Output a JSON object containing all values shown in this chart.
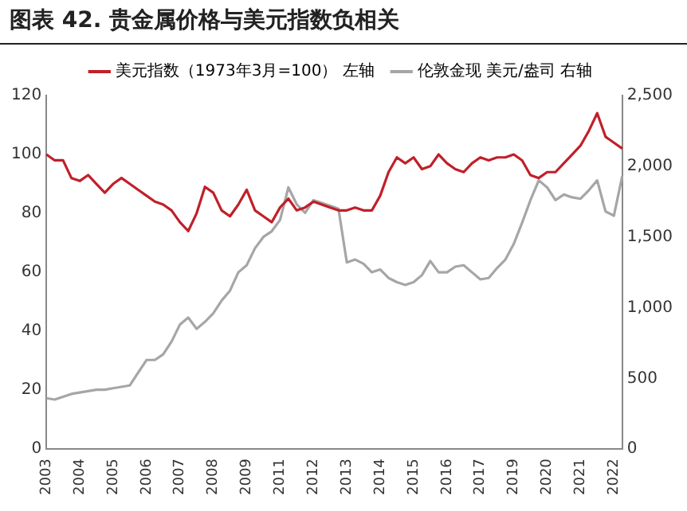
{
  "chart_data": {
    "type": "line",
    "title": "图表 42. 贵金属价格与美元指数负相关",
    "categories": [
      "2003",
      null,
      null,
      null,
      "2004",
      null,
      null,
      null,
      "2005",
      null,
      null,
      null,
      "2006",
      null,
      null,
      null,
      "2007",
      null,
      null,
      null,
      "2008",
      null,
      null,
      null,
      "2009",
      null,
      null,
      null,
      "2011",
      null,
      null,
      null,
      "2012",
      null,
      null,
      null,
      "2013",
      null,
      null,
      null,
      "2014",
      null,
      null,
      null,
      "2015",
      null,
      null,
      null,
      "2016",
      null,
      null,
      null,
      "2017",
      null,
      null,
      null,
      "2019",
      null,
      null,
      null,
      "2020",
      null,
      null,
      null,
      "2021",
      null,
      null,
      null,
      "2022",
      null
    ],
    "series": [
      {
        "name": "美元指数（1973年3月=100） 左轴",
        "color": "#c0202a",
        "values": [
          100,
          98,
          98,
          92,
          91,
          93,
          90,
          87,
          90,
          92,
          90,
          88,
          86,
          84,
          83,
          81,
          77,
          74,
          80,
          89,
          87,
          81,
          79,
          83,
          88,
          81,
          79,
          77,
          82,
          85,
          81,
          82,
          84,
          83,
          82,
          81,
          81,
          82,
          81,
          81,
          86,
          94,
          99,
          97,
          99,
          95,
          96,
          100,
          97,
          95,
          94,
          97,
          99,
          98,
          99,
          99,
          100,
          98,
          93,
          92,
          94,
          94,
          97,
          100,
          103,
          108,
          114,
          106,
          104,
          102
        ]
      },
      {
        "name": "伦敦金现 美元/盎司 右轴",
        "color": "#a6a6a6",
        "axis": "y2",
        "values": [
          360,
          350,
          370,
          390,
          400,
          410,
          420,
          420,
          430,
          440,
          450,
          540,
          630,
          630,
          670,
          760,
          880,
          930,
          850,
          900,
          960,
          1050,
          1120,
          1250,
          1300,
          1420,
          1500,
          1540,
          1620,
          1850,
          1730,
          1670,
          1760,
          1740,
          1720,
          1700,
          1320,
          1340,
          1310,
          1250,
          1270,
          1210,
          1180,
          1160,
          1180,
          1230,
          1330,
          1250,
          1250,
          1290,
          1300,
          1250,
          1200,
          1210,
          1280,
          1340,
          1450,
          1600,
          1760,
          1900,
          1850,
          1760,
          1800,
          1780,
          1770,
          1830,
          1900,
          1680,
          1650,
          1930
        ]
      }
    ],
    "ylim": [
      0,
      120
    ],
    "yticks": [
      0,
      20,
      40,
      60,
      80,
      100,
      120
    ],
    "y2lim": [
      0,
      2500
    ],
    "y2ticks": [
      0,
      500,
      {
        "value": 1000,
        "label": "1,000"
      },
      {
        "value": 1500,
        "label": "1,500"
      },
      {
        "value": 2000,
        "label": "2,000"
      },
      {
        "value": 2500,
        "label": "2,500"
      }
    ],
    "grid": false,
    "legend": "top",
    "marker": "none",
    "line_style": "solid"
  }
}
